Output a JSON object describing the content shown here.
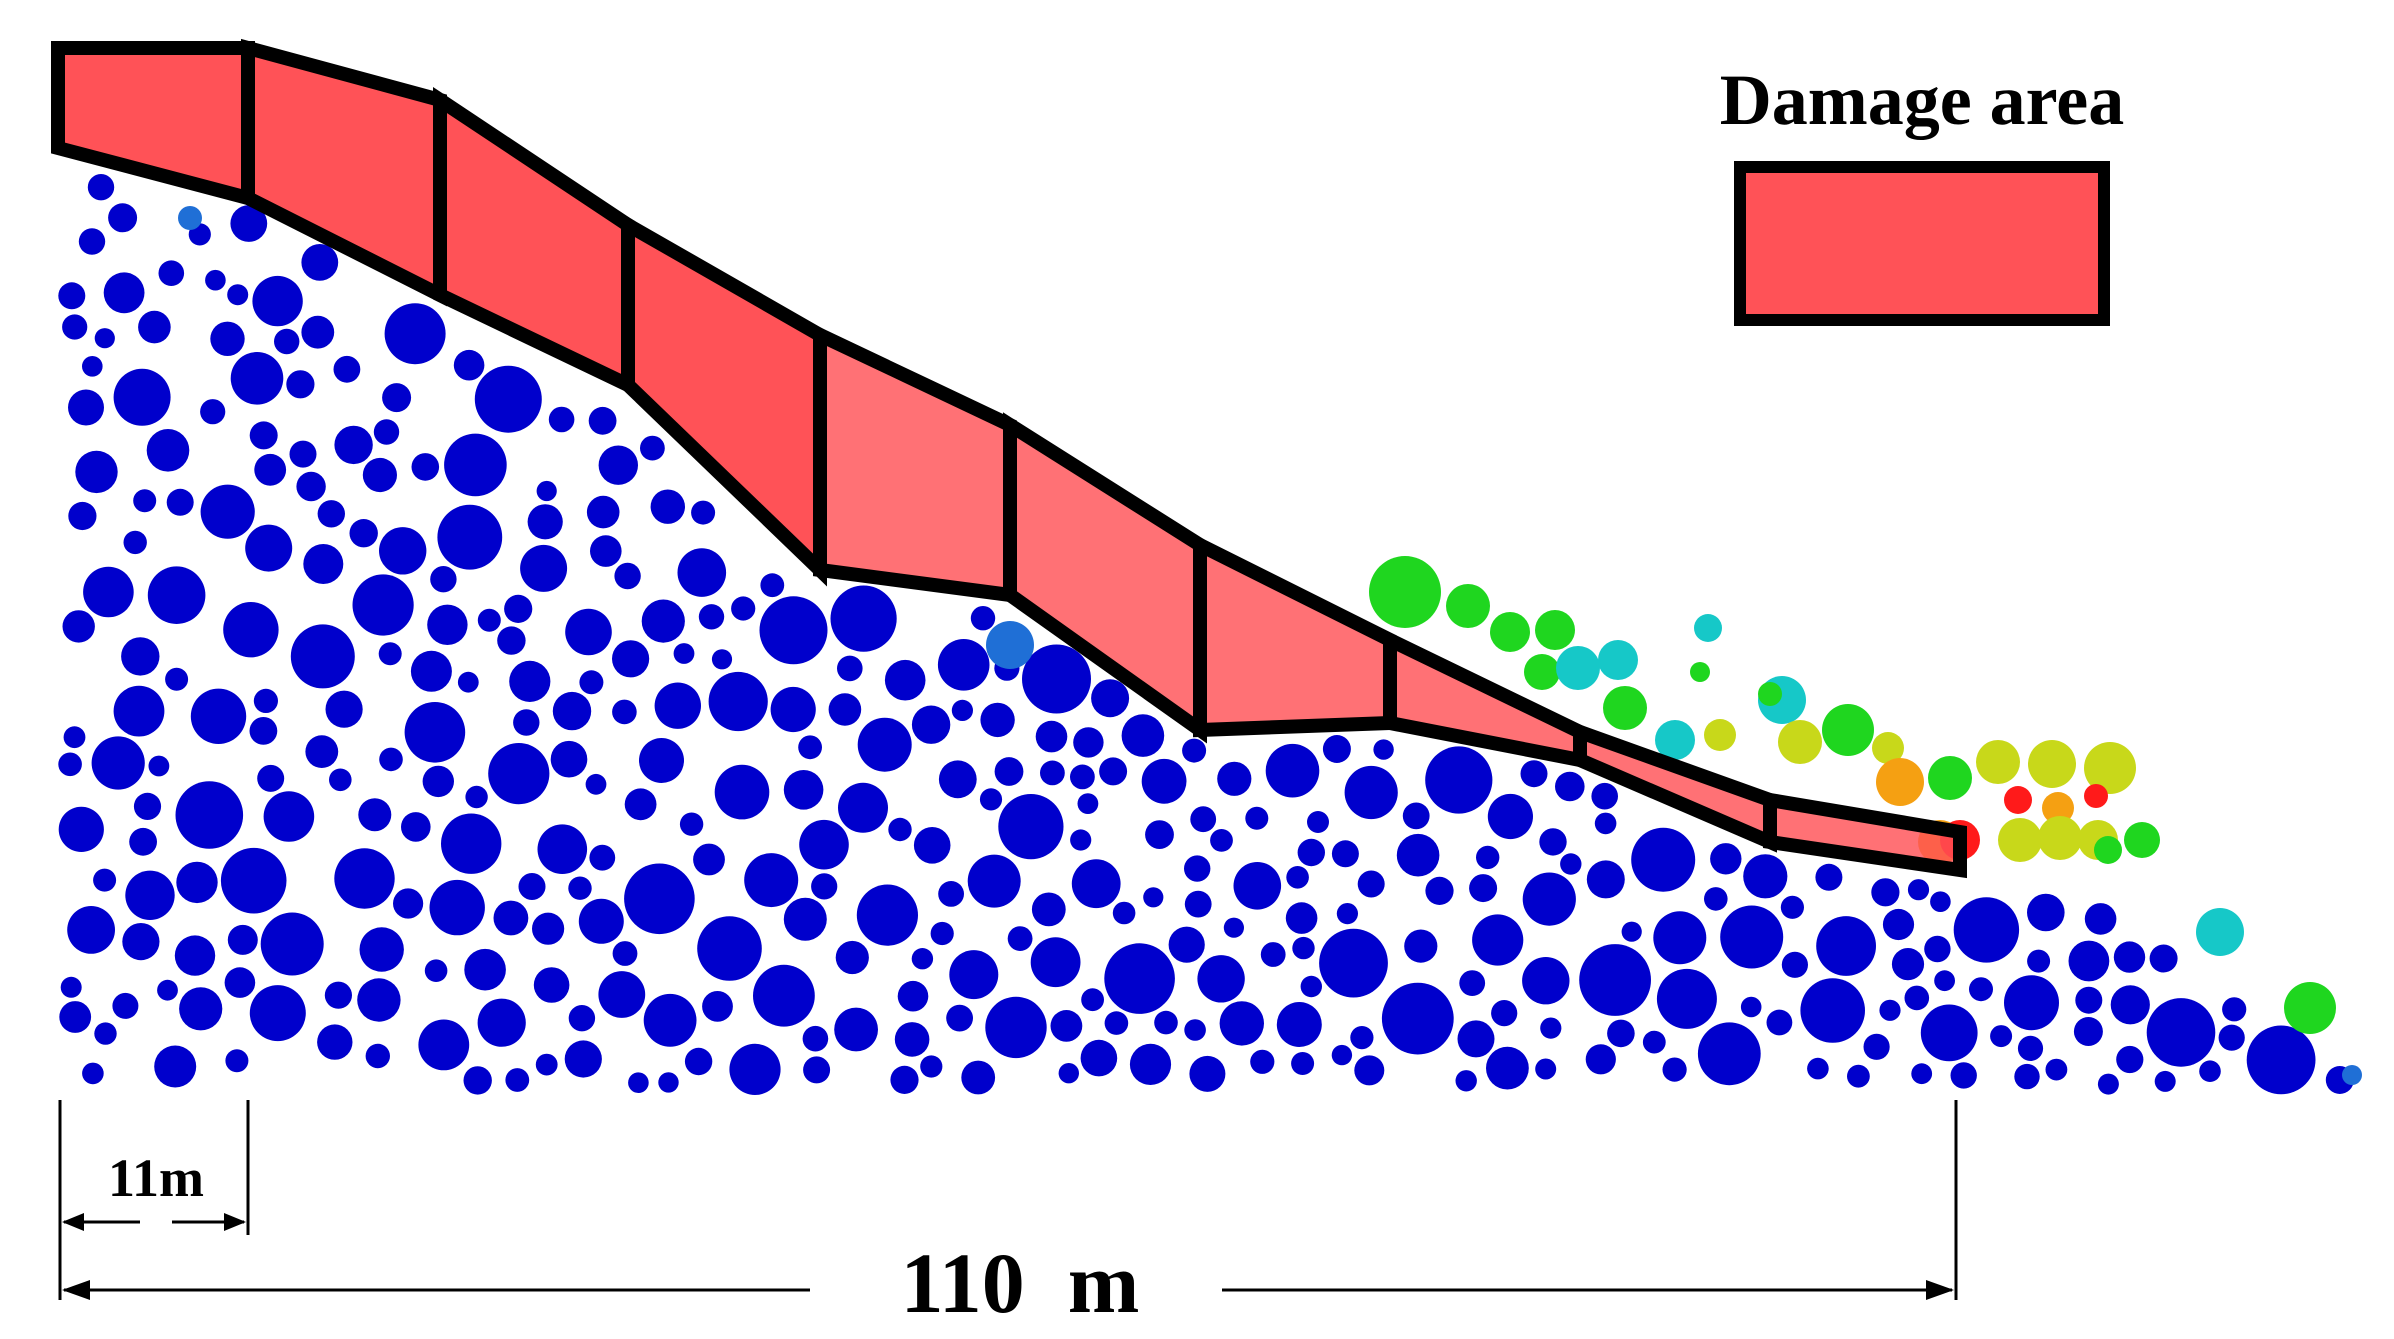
{
  "figure": {
    "legend_label": "Damage area",
    "total_width_label": "110  m",
    "segment_width_label": "11m",
    "damage_segment_count": 10,
    "colors": {
      "damage_fill": "#ff5257",
      "outline": "#000000",
      "stable_particle": "#0000cc",
      "particle_scale": [
        "#0000cc",
        "#1f6fd6",
        "#16c8c8",
        "#1fd61f",
        "#c8d81a",
        "#f5a012",
        "#ff1a1a"
      ]
    }
  }
}
